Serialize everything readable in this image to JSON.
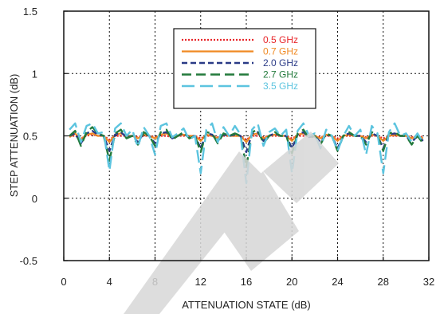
{
  "chart_data": {
    "type": "line",
    "title": "",
    "xlabel": "ATTENUATION STATE (dB)",
    "ylabel": "STEP ATTENUATION (dB)",
    "xlim": [
      0,
      32
    ],
    "ylim": [
      -0.5,
      1.5
    ],
    "xticks": [
      0,
      4,
      8,
      12,
      16,
      20,
      24,
      28,
      32
    ],
    "xtick_labels": [
      "0",
      "4",
      "8",
      "12",
      "16",
      "20",
      "24",
      "28",
      "32"
    ],
    "yticks": [
      -0.5,
      0,
      0.5,
      1,
      1.5
    ],
    "ytick_labels": [
      "-0.5",
      "0",
      "0.5",
      "1",
      "1.5"
    ],
    "grid": true,
    "grid_style": "dotted",
    "legend_position": "top-center",
    "x": [
      0.5,
      1,
      1.5,
      2,
      2.5,
      3,
      3.5,
      4,
      4.5,
      5,
      5.5,
      6,
      6.5,
      7,
      7.5,
      8,
      8.5,
      9,
      9.5,
      10,
      10.5,
      11,
      11.5,
      12,
      12.5,
      13,
      13.5,
      14,
      14.5,
      15,
      15.5,
      16,
      16.5,
      17,
      17.5,
      18,
      18.5,
      19,
      19.5,
      20,
      20.5,
      21,
      21.5,
      22,
      22.5,
      23,
      23.5,
      24,
      24.5,
      25,
      25.5,
      26,
      26.5,
      27,
      27.5,
      28,
      28.5,
      29,
      29.5,
      30,
      30.5,
      31,
      31.5
    ],
    "series": [
      {
        "name": "0.5 GHz",
        "color": "#e8262a",
        "dash": "2,2",
        "width": 2.2,
        "values": [
          0.5,
          0.5,
          0.48,
          0.5,
          0.51,
          0.5,
          0.5,
          0.47,
          0.5,
          0.5,
          0.5,
          0.5,
          0.49,
          0.5,
          0.5,
          0.49,
          0.5,
          0.5,
          0.49,
          0.5,
          0.5,
          0.5,
          0.5,
          0.48,
          0.5,
          0.5,
          0.49,
          0.5,
          0.5,
          0.5,
          0.5,
          0.47,
          0.5,
          0.5,
          0.49,
          0.5,
          0.5,
          0.5,
          0.5,
          0.48,
          0.5,
          0.5,
          0.5,
          0.5,
          0.49,
          0.5,
          0.5,
          0.48,
          0.5,
          0.5,
          0.5,
          0.5,
          0.49,
          0.5,
          0.5,
          0.48,
          0.5,
          0.5,
          0.5,
          0.5,
          0.49,
          0.5,
          0.49
        ]
      },
      {
        "name": "0.7 GHz",
        "color": "#f08a24",
        "dash": "",
        "width": 2.2,
        "values": [
          0.49,
          0.52,
          0.47,
          0.51,
          0.52,
          0.5,
          0.5,
          0.45,
          0.51,
          0.52,
          0.5,
          0.5,
          0.48,
          0.51,
          0.5,
          0.48,
          0.51,
          0.52,
          0.49,
          0.5,
          0.51,
          0.5,
          0.5,
          0.46,
          0.51,
          0.5,
          0.48,
          0.51,
          0.5,
          0.5,
          0.5,
          0.45,
          0.51,
          0.52,
          0.48,
          0.5,
          0.51,
          0.5,
          0.5,
          0.46,
          0.51,
          0.52,
          0.5,
          0.5,
          0.48,
          0.51,
          0.5,
          0.46,
          0.5,
          0.51,
          0.5,
          0.5,
          0.48,
          0.51,
          0.5,
          0.46,
          0.5,
          0.51,
          0.5,
          0.5,
          0.48,
          0.5,
          0.48
        ]
      },
      {
        "name": "2.0 GHz",
        "color": "#2a3a86",
        "dash": "7,4",
        "width": 2.4,
        "values": [
          0.5,
          0.52,
          0.44,
          0.52,
          0.54,
          0.51,
          0.5,
          0.38,
          0.51,
          0.53,
          0.49,
          0.5,
          0.45,
          0.52,
          0.5,
          0.44,
          0.52,
          0.53,
          0.48,
          0.5,
          0.52,
          0.49,
          0.5,
          0.4,
          0.52,
          0.51,
          0.46,
          0.51,
          0.5,
          0.51,
          0.5,
          0.37,
          0.52,
          0.53,
          0.46,
          0.5,
          0.52,
          0.5,
          0.5,
          0.4,
          0.51,
          0.53,
          0.49,
          0.5,
          0.45,
          0.51,
          0.5,
          0.4,
          0.5,
          0.52,
          0.5,
          0.5,
          0.45,
          0.52,
          0.5,
          0.4,
          0.51,
          0.52,
          0.5,
          0.5,
          0.45,
          0.5,
          0.46
        ]
      },
      {
        "name": "2.7 GHz",
        "color": "#237a3c",
        "dash": "12,6",
        "width": 2.4,
        "values": [
          0.5,
          0.54,
          0.42,
          0.53,
          0.57,
          0.52,
          0.5,
          0.3,
          0.52,
          0.55,
          0.48,
          0.5,
          0.43,
          0.53,
          0.5,
          0.42,
          0.53,
          0.55,
          0.47,
          0.5,
          0.53,
          0.48,
          0.5,
          0.37,
          0.53,
          0.52,
          0.44,
          0.52,
          0.5,
          0.52,
          0.5,
          0.25,
          0.53,
          0.55,
          0.44,
          0.5,
          0.53,
          0.5,
          0.5,
          0.36,
          0.52,
          0.55,
          0.48,
          0.5,
          0.43,
          0.52,
          0.5,
          0.38,
          0.5,
          0.53,
          0.5,
          0.5,
          0.43,
          0.53,
          0.5,
          0.38,
          0.52,
          0.53,
          0.5,
          0.5,
          0.43,
          0.5,
          0.44
        ]
      },
      {
        "name": "3.5 GHz",
        "color": "#5cc4df",
        "dash": "16,7",
        "width": 2.4,
        "values": [
          0.55,
          0.6,
          0.45,
          0.58,
          0.6,
          0.52,
          0.53,
          0.22,
          0.56,
          0.6,
          0.5,
          0.55,
          0.41,
          0.57,
          0.5,
          0.35,
          0.58,
          0.6,
          0.49,
          0.52,
          0.56,
          0.47,
          0.5,
          0.2,
          0.55,
          0.6,
          0.45,
          0.57,
          0.5,
          0.58,
          0.51,
          0.12,
          0.55,
          0.6,
          0.42,
          0.53,
          0.56,
          0.5,
          0.55,
          0.2,
          0.54,
          0.6,
          0.5,
          0.52,
          0.4,
          0.55,
          0.5,
          0.38,
          0.5,
          0.58,
          0.5,
          0.55,
          0.35,
          0.58,
          0.52,
          0.2,
          0.53,
          0.6,
          0.5,
          0.52,
          0.45,
          0.52,
          0.45
        ]
      }
    ]
  }
}
